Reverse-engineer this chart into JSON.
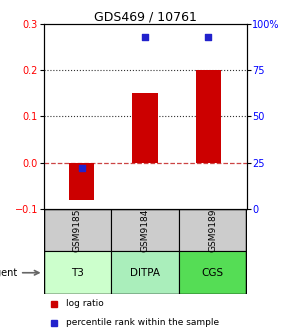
{
  "title": "GDS469 / 10761",
  "samples": [
    "GSM9185",
    "GSM9184",
    "GSM9189"
  ],
  "agents": [
    "T3",
    "DITPA",
    "CGS"
  ],
  "log_ratios": [
    -0.08,
    0.15,
    0.2
  ],
  "percentile_ranks": [
    22,
    93,
    93
  ],
  "ylim_left": [
    -0.1,
    0.3
  ],
  "ylim_right": [
    0,
    100
  ],
  "yticks_left": [
    -0.1,
    0,
    0.1,
    0.2,
    0.3
  ],
  "yticks_right": [
    0,
    25,
    50,
    75,
    100
  ],
  "ytick_labels_right": [
    "0",
    "25",
    "50",
    "75",
    "100%"
  ],
  "bar_color": "#cc0000",
  "square_color": "#2222cc",
  "agent_colors": [
    "#ccffcc",
    "#aaeebb",
    "#55dd55"
  ],
  "sample_bg": "#cccccc",
  "zero_line_color": "#cc4444",
  "dot_line_color": "#444444",
  "legend_bar_color": "#cc0000",
  "legend_sq_color": "#2222cc",
  "bar_width": 0.4
}
